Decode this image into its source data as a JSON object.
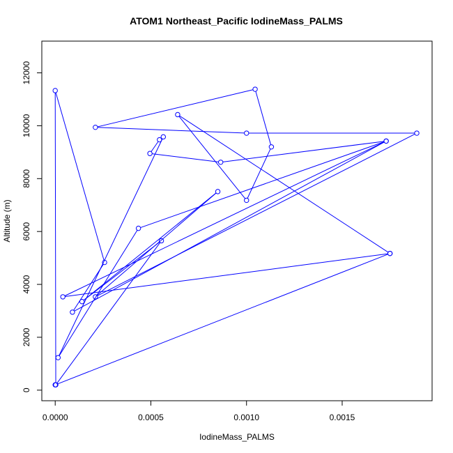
{
  "chart_data": {
    "type": "line",
    "title": "ATOM1 Northeast_Pacific IodineMass_PALMS",
    "xlabel": "IodineMass_PALMS",
    "ylabel": "Altitude (m)",
    "xlim": [
      -7e-05,
      0.00197
    ],
    "ylim": [
      -400,
      13200
    ],
    "x_ticks": [
      0,
      0.0005,
      0.001,
      0.0015
    ],
    "x_tick_labels": [
      "0.0000",
      "0.0005",
      "0.0010",
      "0.0015"
    ],
    "y_ticks": [
      0,
      2000,
      4000,
      6000,
      8000,
      10000,
      12000
    ],
    "y_tick_labels": [
      "0",
      "2000",
      "4000",
      "6000",
      "8000",
      "10000",
      "12000"
    ],
    "grid": false,
    "series": [
      {
        "color": "#0000ff",
        "marker": "open-circle",
        "x": [
          0.0,
          0.00175,
          4e-05,
          0.00173,
          0.000435,
          1.5e-05,
          0.000565,
          0.000545,
          0.000495,
          0.000865,
          0.00173,
          9e-05,
          0.000258,
          0.0,
          3e-06,
          0.000555,
          0.00014,
          0.00085,
          0.00021,
          0.00189,
          0.001,
          0.00021,
          0.001045,
          0.00113,
          0.001,
          0.00064,
          0.00175
        ],
        "y": [
          200,
          5170,
          3530,
          9420,
          6120,
          1230,
          9580,
          9470,
          8950,
          8620,
          9420,
          2950,
          4830,
          11330,
          200,
          5650,
          3350,
          7510,
          3530,
          9720,
          9720,
          9940,
          11380,
          9200,
          7180,
          10420,
          5170
        ]
      }
    ]
  }
}
